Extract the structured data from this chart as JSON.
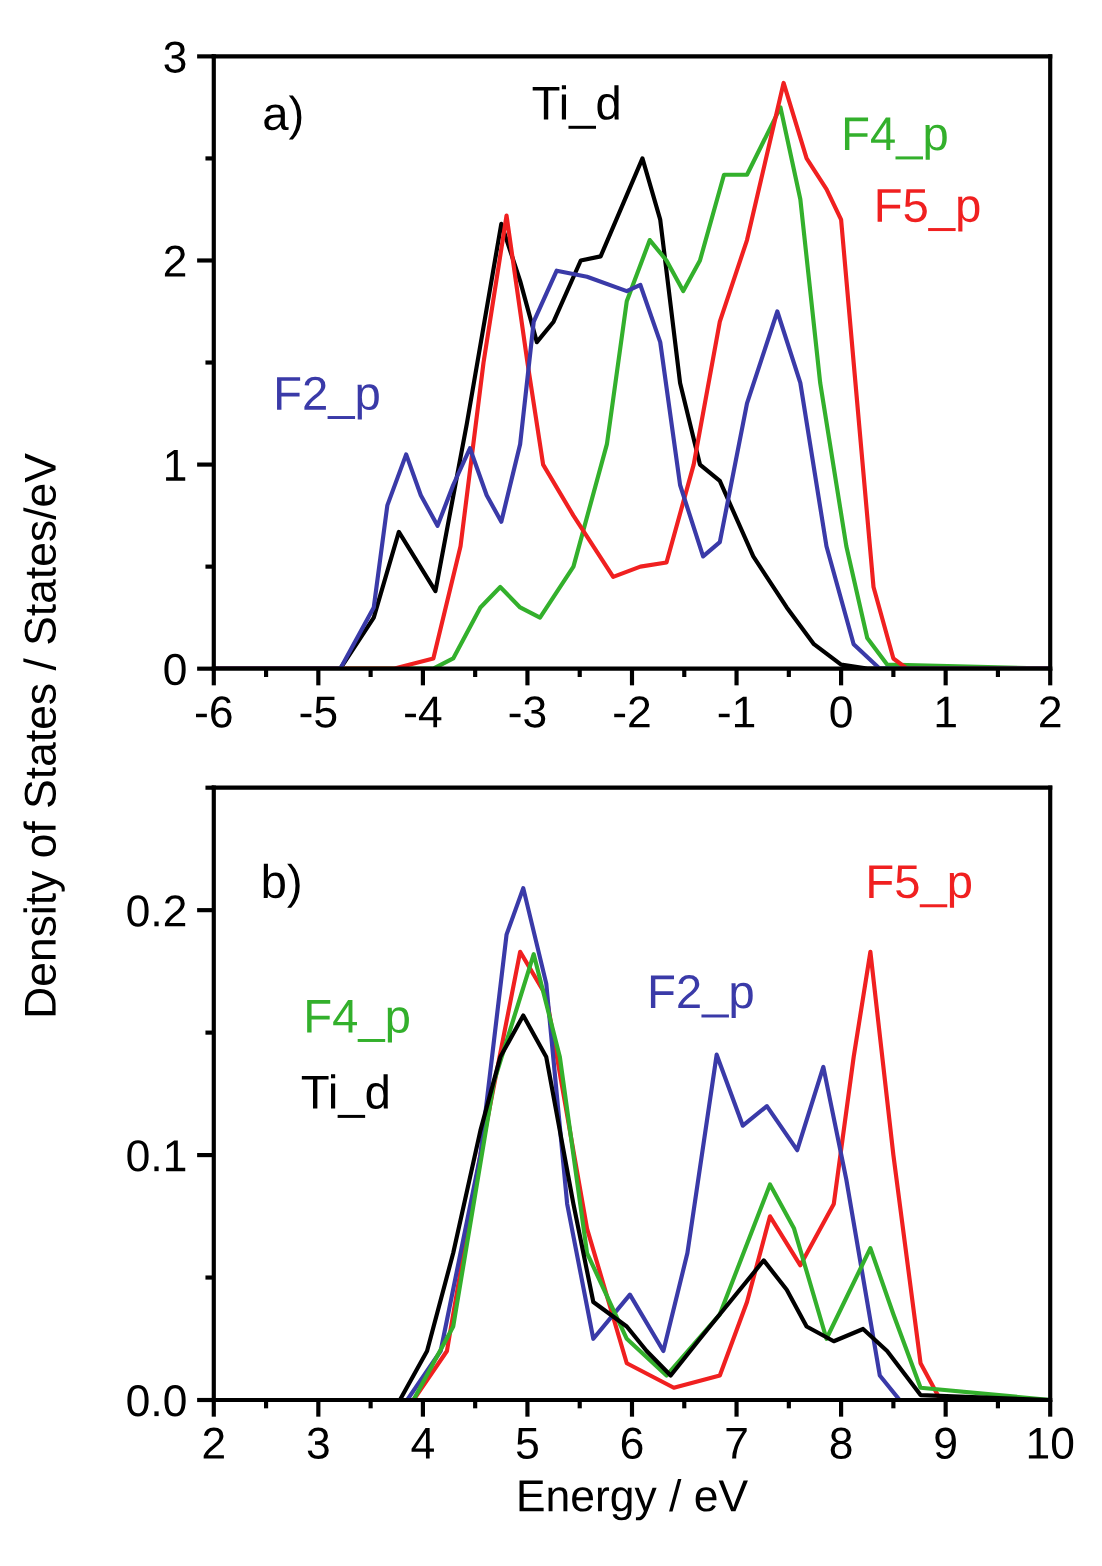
{
  "chart_data": [
    {
      "type": "line",
      "ylabel": "Density of States / States/eV",
      "annotations": [
        "a)"
      ],
      "xlim": [
        -6,
        2
      ],
      "ylim": [
        0,
        3
      ],
      "xticks": [
        -6,
        -5,
        -4,
        -3,
        -2,
        -1,
        0,
        1,
        2
      ],
      "yticks": [
        0,
        1,
        2,
        3
      ],
      "grid": false,
      "legend": false,
      "marker": "none",
      "line_style": "solid",
      "series": [
        {
          "name": "Ti_d",
          "color": "#000000",
          "x": [
            -6,
            -4.79,
            -4.47,
            -4.23,
            -3.88,
            -3.58,
            -3.25,
            -3.07,
            -2.91,
            -2.75,
            -2.49,
            -2.3,
            -1.9,
            -1.73,
            -1.54,
            -1.35,
            -1.16,
            -0.84,
            -0.52,
            -0.26,
            0.0,
            0.25,
            2
          ],
          "values": [
            0,
            0,
            0.25,
            0.67,
            0.38,
            1.2,
            2.18,
            1.9,
            1.6,
            1.7,
            2.0,
            2.02,
            2.5,
            2.2,
            1.4,
            1.0,
            0.92,
            0.55,
            0.3,
            0.12,
            0.02,
            0,
            0
          ]
        },
        {
          "name": "F4_p",
          "color": "#33b02c",
          "x": [
            -6,
            -3.9,
            -3.71,
            -3.45,
            -3.26,
            -3.07,
            -2.88,
            -2.56,
            -2.24,
            -2.05,
            -1.83,
            -1.67,
            -1.51,
            -1.35,
            -1.12,
            -0.9,
            -0.58,
            -0.39,
            -0.2,
            0.05,
            0.25,
            0.44,
            2
          ],
          "values": [
            0,
            0,
            0.05,
            0.3,
            0.4,
            0.3,
            0.25,
            0.5,
            1.1,
            1.8,
            2.1,
            2.0,
            1.85,
            2.0,
            2.42,
            2.42,
            2.75,
            2.3,
            1.4,
            0.6,
            0.15,
            0.02,
            0
          ]
        },
        {
          "name": "F5_p",
          "color": "#f02020",
          "x": [
            -6,
            -4.28,
            -3.9,
            -3.64,
            -3.42,
            -3.2,
            -3.0,
            -2.85,
            -2.56,
            -2.18,
            -1.92,
            -1.67,
            -1.41,
            -1.16,
            -0.9,
            -0.55,
            -0.33,
            -0.14,
            0.0,
            0.12,
            0.31,
            0.5,
            0.63,
            2
          ],
          "values": [
            0,
            0,
            0.05,
            0.6,
            1.5,
            2.22,
            1.5,
            1.0,
            0.75,
            0.45,
            0.5,
            0.52,
            1.0,
            1.7,
            2.1,
            2.87,
            2.5,
            2.35,
            2.2,
            1.5,
            0.4,
            0.05,
            0,
            0
          ]
        },
        {
          "name": "F2_p",
          "color": "#3a3aa8",
          "x": [
            -6,
            -4.79,
            -4.47,
            -4.34,
            -4.16,
            -4.02,
            -3.86,
            -3.71,
            -3.55,
            -3.39,
            -3.25,
            -3.07,
            -2.94,
            -2.72,
            -2.43,
            -2.05,
            -1.92,
            -1.73,
            -1.54,
            -1.32,
            -1.16,
            -0.9,
            -0.61,
            -0.39,
            -0.14,
            0.12,
            0.37,
            2
          ],
          "values": [
            0,
            0,
            0.3,
            0.8,
            1.05,
            0.85,
            0.7,
            0.9,
            1.08,
            0.85,
            0.72,
            1.1,
            1.7,
            1.95,
            1.92,
            1.85,
            1.88,
            1.6,
            0.9,
            0.55,
            0.62,
            1.3,
            1.75,
            1.4,
            0.6,
            0.12,
            0,
            0
          ]
        }
      ]
    },
    {
      "type": "line",
      "xlabel": "Energy / eV",
      "annotations": [
        "b)"
      ],
      "xlim": [
        2,
        10
      ],
      "ylim": [
        0,
        0.25
      ],
      "xticks": [
        2,
        3,
        4,
        5,
        6,
        7,
        8,
        9,
        10
      ],
      "yticks": [
        {
          "value": 0,
          "label": "0.0"
        },
        0.1,
        0.2
      ],
      "grid": false,
      "legend": false,
      "marker": "none",
      "line_style": "solid",
      "series": [
        {
          "name": "F5_p",
          "color": "#f02020",
          "x": [
            2,
            3.91,
            4.23,
            4.55,
            4.93,
            5.18,
            5.57,
            5.95,
            6.4,
            6.84,
            7.1,
            7.32,
            7.61,
            7.93,
            8.12,
            8.28,
            8.5,
            8.76,
            8.95,
            10
          ],
          "values": [
            0,
            0,
            0.02,
            0.1,
            0.183,
            0.165,
            0.07,
            0.015,
            0.005,
            0.01,
            0.04,
            0.075,
            0.055,
            0.08,
            0.14,
            0.183,
            0.1,
            0.015,
            0,
            0
          ]
        },
        {
          "name": "F2_p",
          "color": "#3a3aa8",
          "x": [
            2,
            3.85,
            4.17,
            4.55,
            4.8,
            4.96,
            5.18,
            5.38,
            5.63,
            5.98,
            6.3,
            6.53,
            6.81,
            7.06,
            7.29,
            7.58,
            7.83,
            8.05,
            8.37,
            8.56,
            10
          ],
          "values": [
            0,
            0,
            0.02,
            0.1,
            0.19,
            0.209,
            0.17,
            0.08,
            0.025,
            0.043,
            0.02,
            0.06,
            0.141,
            0.112,
            0.12,
            0.102,
            0.136,
            0.09,
            0.01,
            0,
            0
          ]
        },
        {
          "name": "F4_p",
          "color": "#33b02c",
          "x": [
            2,
            3.91,
            4.29,
            4.68,
            5.06,
            5.31,
            5.57,
            5.95,
            6.33,
            6.84,
            7.32,
            7.55,
            7.86,
            8.28,
            8.5,
            8.76,
            10
          ],
          "values": [
            0,
            0,
            0.03,
            0.13,
            0.182,
            0.14,
            0.06,
            0.025,
            0.01,
            0.035,
            0.088,
            0.07,
            0.025,
            0.062,
            0.035,
            0.005,
            0
          ]
        },
        {
          "name": "Ti_d",
          "color": "#000000",
          "x": [
            2,
            3.78,
            4.04,
            4.29,
            4.55,
            4.74,
            4.96,
            5.18,
            5.44,
            5.63,
            5.95,
            6.14,
            6.37,
            6.65,
            6.84,
            7.26,
            7.48,
            7.67,
            7.93,
            8.21,
            8.44,
            8.76,
            10
          ],
          "values": [
            0,
            0,
            0.02,
            0.06,
            0.11,
            0.14,
            0.157,
            0.14,
            0.08,
            0.04,
            0.03,
            0.02,
            0.01,
            0.025,
            0.035,
            0.057,
            0.045,
            0.03,
            0.024,
            0.029,
            0.02,
            0.002,
            0
          ]
        }
      ]
    }
  ]
}
